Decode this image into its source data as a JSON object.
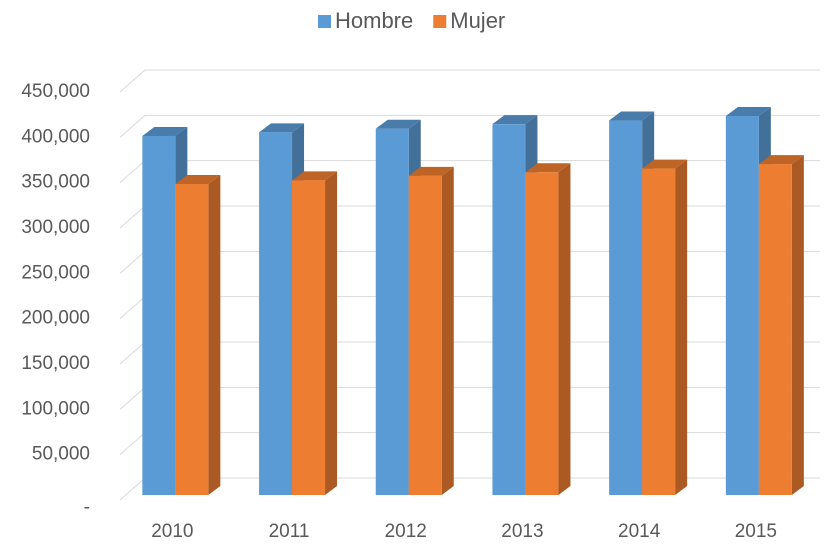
{
  "chart_data": {
    "type": "bar3d",
    "categories": [
      "2010",
      "2011",
      "2012",
      "2013",
      "2014",
      "2015"
    ],
    "series": [
      {
        "name": "Hombre",
        "color": "#5b9bd5",
        "values": [
          396000,
          400000,
          404000,
          409000,
          413000,
          418000
        ]
      },
      {
        "name": "Mujer",
        "color": "#ed7d31",
        "values": [
          343000,
          347000,
          352000,
          356000,
          360000,
          365000
        ]
      }
    ],
    "ylim": [
      0,
      450000
    ],
    "yticks": [
      {
        "value": 0,
        "label": "-"
      },
      {
        "value": 50000,
        "label": "50,000"
      },
      {
        "value": 100000,
        "label": "100,000"
      },
      {
        "value": 150000,
        "label": "150,000"
      },
      {
        "value": 200000,
        "label": "200,000"
      },
      {
        "value": 250000,
        "label": "250,000"
      },
      {
        "value": 300000,
        "label": "300,000"
      },
      {
        "value": 350000,
        "label": "350,000"
      },
      {
        "value": 400000,
        "label": "400,000"
      },
      {
        "value": 450000,
        "label": "450,000"
      }
    ],
    "grid": true,
    "legend": "top"
  }
}
